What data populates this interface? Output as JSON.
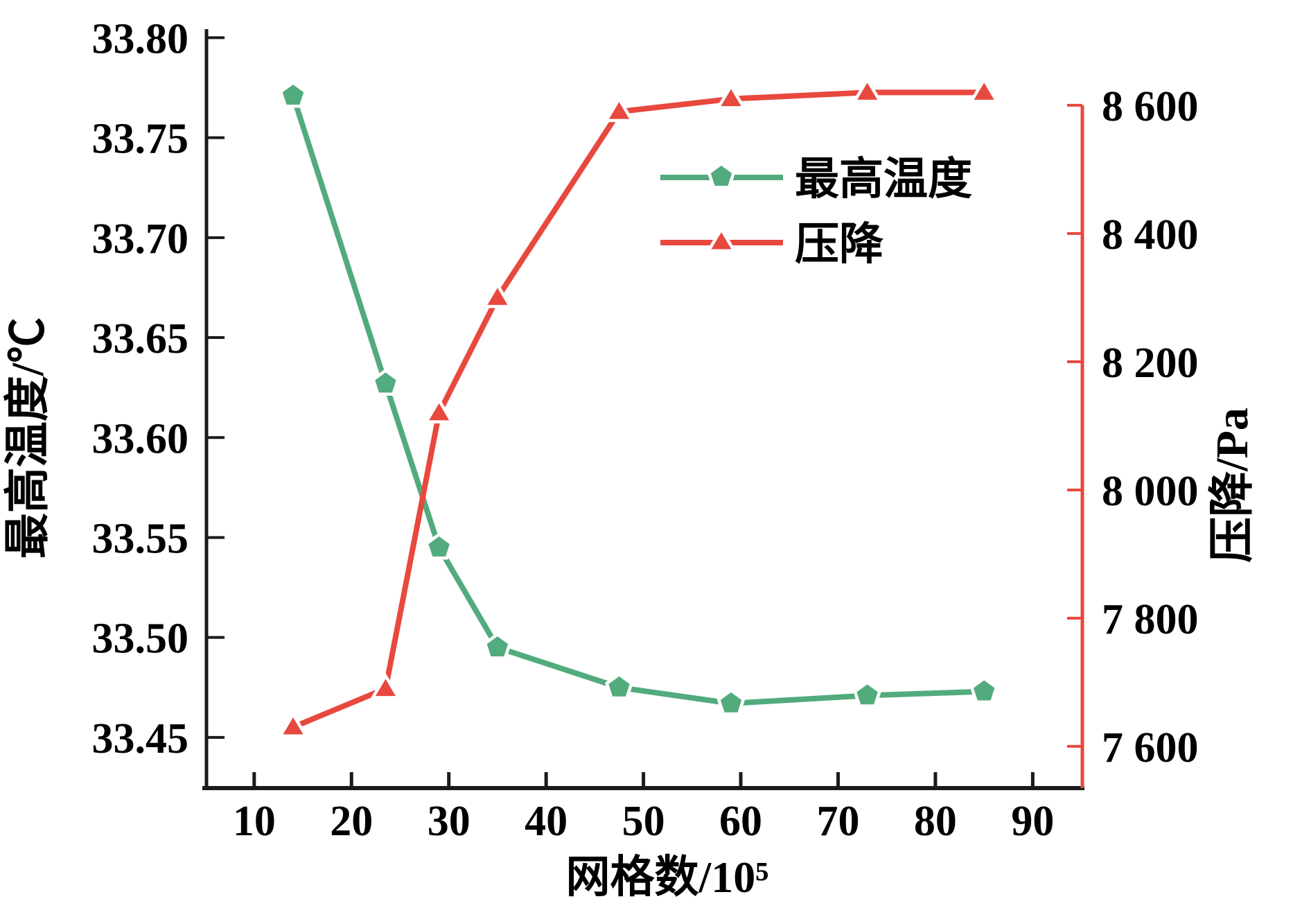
{
  "chart_data": {
    "type": "line",
    "title": "",
    "xlabel": "网格数/10⁵",
    "left_ylabel": "最高温度/℃",
    "right_ylabel": "压降/Pa",
    "x_tick_labels": [
      "10",
      "20",
      "30",
      "40",
      "50",
      "60",
      "70",
      "80",
      "90"
    ],
    "x_tick_values": [
      10,
      20,
      30,
      40,
      50,
      60,
      70,
      80,
      90
    ],
    "xlim": [
      5.1,
      95.1
    ],
    "grid": false,
    "left_axis": {
      "tick_labels": [
        "33.80",
        "33.75",
        "33.70",
        "33.65",
        "33.60",
        "33.55",
        "33.50",
        "33.45"
      ],
      "tick_values": [
        33.8,
        33.75,
        33.7,
        33.65,
        33.6,
        33.55,
        33.5,
        33.45
      ],
      "ylim": [
        33.425,
        33.805
      ]
    },
    "right_axis": {
      "tick_labels": [
        "8 600",
        "8 400",
        "8 200",
        "8 000",
        "7 800",
        "7 600"
      ],
      "tick_values": [
        8600,
        8400,
        8200,
        8000,
        7800,
        7600
      ],
      "ylim": [
        7536,
        8721
      ]
    },
    "series": [
      {
        "name": "最高温度",
        "axis": "left",
        "marker": "pentagon",
        "color": "#52ab7c",
        "x": [
          14,
          23.5,
          29,
          35,
          47.5,
          59,
          73,
          85
        ],
        "y": [
          33.771,
          33.627,
          33.545,
          33.495,
          33.475,
          33.467,
          33.471,
          33.473
        ]
      },
      {
        "name": "压降",
        "axis": "right",
        "marker": "triangle",
        "color": "#e8483e",
        "x": [
          14,
          23.5,
          29,
          35,
          47.5,
          59,
          73,
          85
        ],
        "y": [
          7630,
          7690,
          8120,
          8300,
          8590,
          8610,
          8620,
          8620
        ]
      }
    ],
    "legend": {
      "entries": [
        "最高温度",
        "压降"
      ],
      "position": "inside upper right"
    }
  },
  "colors": {
    "background": "#ffffff",
    "axis": "#1a1a1a",
    "text": "#000000",
    "right_axis": "#e8483e",
    "temperature": "#52ab7c",
    "pressure": "#e8483e"
  }
}
